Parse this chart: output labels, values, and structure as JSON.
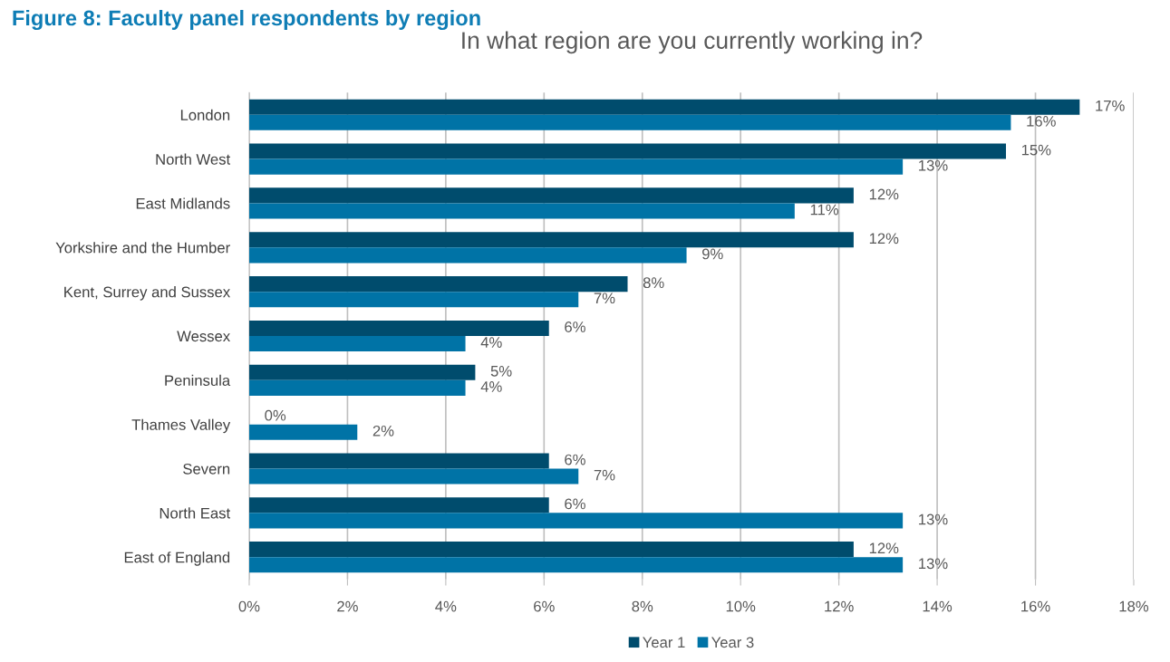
{
  "chart_data": {
    "type": "bar",
    "orientation": "horizontal",
    "title": "In what region are you currently working in?",
    "annotations": [
      "Figure 8: Faculty panel respondents by region"
    ],
    "categories": [
      "London",
      "North West",
      "East Midlands",
      "Yorkshire and the Humber",
      "Kent, Surrey and Sussex",
      "Wessex",
      "Peninsula",
      "Thames Valley",
      "Severn",
      "North East",
      "East of England"
    ],
    "series": [
      {
        "name": "Year 1",
        "color": "#004c6d",
        "values": [
          16.9,
          15.4,
          12.3,
          12.3,
          7.7,
          6.1,
          4.6,
          0,
          6.1,
          6.1,
          12.3
        ],
        "value_labels": [
          "17%",
          "15%",
          "12%",
          "12%",
          "8%",
          "6%",
          "5%",
          "0%",
          "6%",
          "6%",
          "12%"
        ]
      },
      {
        "name": "Year 3",
        "color": "#0073a6",
        "values": [
          15.5,
          13.3,
          11.1,
          8.9,
          6.7,
          4.4,
          4.4,
          2.2,
          6.7,
          13.3,
          13.3
        ],
        "value_labels": [
          "16%",
          "13%",
          "11%",
          "9%",
          "7%",
          "4%",
          "4%",
          "2%",
          "7%",
          "13%",
          "13%"
        ]
      }
    ],
    "xlim": [
      0,
      18
    ],
    "xticks": [
      {
        "value": 0,
        "label": "0%"
      },
      {
        "value": 2,
        "label": "2%"
      },
      {
        "value": 4,
        "label": "4%"
      },
      {
        "value": 6,
        "label": "6%"
      },
      {
        "value": 8,
        "label": "8%"
      },
      {
        "value": 10,
        "label": "10%"
      },
      {
        "value": 12,
        "label": "12%"
      },
      {
        "value": 14,
        "label": "14%"
      },
      {
        "value": 16,
        "label": "16%"
      },
      {
        "value": 18,
        "label": "18%"
      }
    ],
    "grid": "x",
    "legend": "bottom"
  }
}
